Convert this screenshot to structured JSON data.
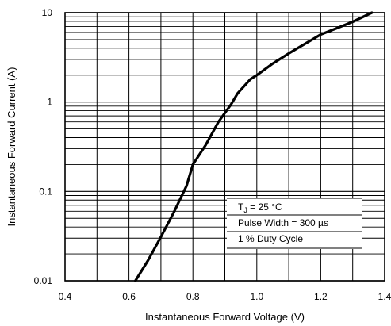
{
  "chart_data": {
    "type": "line",
    "xlabel": "Instantaneous Forward Voltage (V)",
    "ylabel": "Instantaneous Forward Current (A)",
    "xlim": [
      0.4,
      1.4
    ],
    "ylim": [
      0.01,
      10
    ],
    "yscale": "log",
    "grid": true,
    "x_ticks": [
      "0.4",
      "0.6",
      "0.8",
      "1.0",
      "1.2",
      "1.4"
    ],
    "x_tick_values": [
      0.4,
      0.6,
      0.8,
      1.0,
      1.2,
      1.4
    ],
    "y_ticks": [
      "0.01",
      "0.1",
      "1",
      "10"
    ],
    "y_tick_values": [
      0.01,
      0.1,
      1,
      10
    ],
    "annotation": {
      "tj_main": "T",
      "tj_sub": "J",
      "tj_rest": " = 25 °C",
      "pulse": "Pulse Width = 300 µs",
      "duty": "1 % Duty Cycle"
    },
    "series": [
      {
        "x": [
          0.62,
          0.66,
          0.7,
          0.74,
          0.78,
          0.8,
          0.84,
          0.88,
          0.92,
          0.94,
          0.98,
          1.0,
          1.05,
          1.1,
          1.2,
          1.25,
          1.3,
          1.36
        ],
        "y": [
          0.01,
          0.017,
          0.031,
          0.058,
          0.115,
          0.2,
          0.33,
          0.6,
          0.95,
          1.25,
          1.8,
          2.0,
          2.7,
          3.5,
          5.7,
          6.7,
          7.9,
          10.0
        ]
      }
    ]
  }
}
